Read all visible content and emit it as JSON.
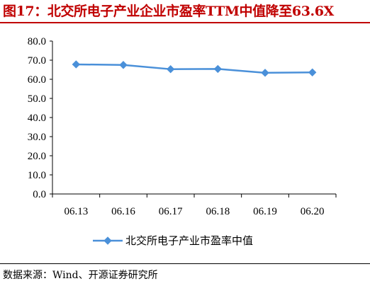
{
  "header": {
    "title": "图17：北交所电子产业企业市盈率TTM中值降至63.6X"
  },
  "footer": {
    "source": "数据来源：Wind、开源证券研究所"
  },
  "colors": {
    "title": "#c00000",
    "series": "#4a90d9"
  },
  "chart_data": {
    "type": "line",
    "title": "",
    "xlabel": "",
    "ylabel": "",
    "categories": [
      "06.13",
      "06.16",
      "06.17",
      "06.18",
      "06.19",
      "06.20"
    ],
    "series": [
      {
        "name": "北交所电子产业市盈率中值",
        "values": [
          67.8,
          67.5,
          65.3,
          65.4,
          63.4,
          63.6
        ],
        "marker": "diamond"
      }
    ],
    "ylim": [
      0,
      80
    ],
    "yticks": [
      "0.0",
      "10.0",
      "20.0",
      "30.0",
      "40.0",
      "50.0",
      "60.0",
      "70.0",
      "80.0"
    ],
    "grid": false,
    "legend": "bottom"
  }
}
